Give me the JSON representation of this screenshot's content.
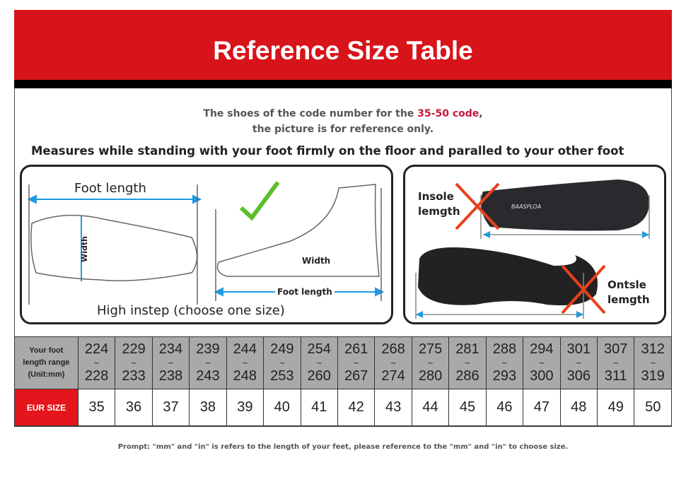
{
  "title": "Reference Size Table",
  "note": {
    "line1_pre": "The shoes of the code number for the ",
    "line1_hl": "35-50 code",
    "line1_post": ",",
    "line2": "the picture is for reference only."
  },
  "measure_text": "Measures while standing with your foot firmly on the floor and paralled to your other foot",
  "left_panel": {
    "foot_length": "Foot length",
    "width_top": "Width",
    "width_side": "Width",
    "foot_length_small": "Foot length",
    "instep": "High instep  (choose one size)"
  },
  "right_panel": {
    "insole": "Insole\nlemgth",
    "outsole": "Ontsle\nlemgth",
    "brand": "BAASPLOA"
  },
  "table": {
    "row1_header": [
      "Your foot",
      "length range",
      "(Unit:mm)"
    ],
    "row2_header": "EUR SIZE",
    "ranges": [
      [
        "224",
        "228"
      ],
      [
        "229",
        "233"
      ],
      [
        "234",
        "238"
      ],
      [
        "239",
        "243"
      ],
      [
        "244",
        "248"
      ],
      [
        "249",
        "253"
      ],
      [
        "254",
        "260"
      ],
      [
        "261",
        "267"
      ],
      [
        "268",
        "274"
      ],
      [
        "275",
        "280"
      ],
      [
        "281",
        "286"
      ],
      [
        "288",
        "293"
      ],
      [
        "294",
        "300"
      ],
      [
        "301",
        "306"
      ],
      [
        "307",
        "311"
      ],
      [
        "312",
        "319"
      ]
    ],
    "sizes": [
      "35",
      "36",
      "37",
      "38",
      "39",
      "40",
      "41",
      "42",
      "43",
      "44",
      "45",
      "46",
      "47",
      "48",
      "49",
      "50"
    ]
  },
  "prompt": "Prompt: \"mm\" and \"in\" is refers to the length of your feet, please reference to the \"mm\" and \"in\" to choose size.",
  "colors": {
    "red": "#d7141a",
    "highlight": "#c8173c",
    "gray": "#a9a9a9",
    "arrow": "#1e9be0",
    "cross": "#e8401c",
    "check": "#5cbf2a"
  }
}
